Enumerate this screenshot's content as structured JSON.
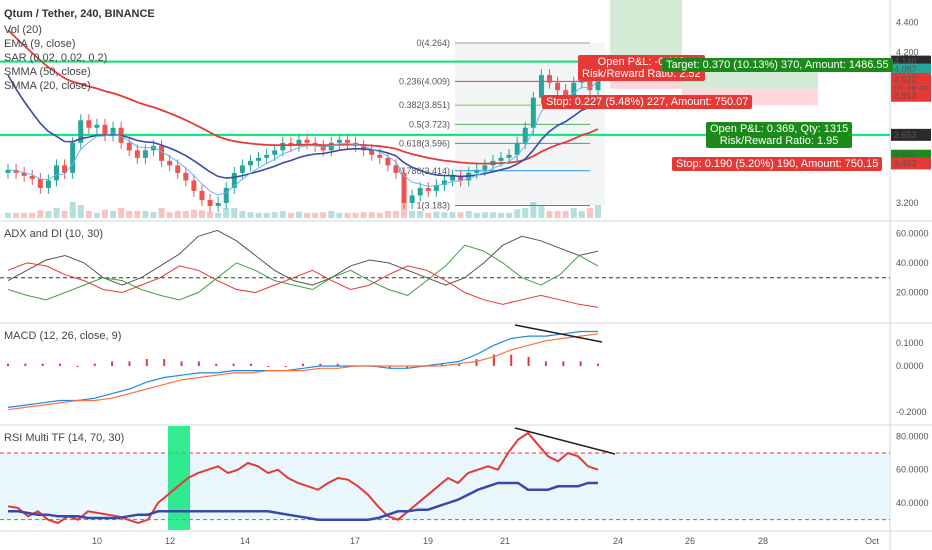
{
  "header": {
    "symbol": "Qtum / Tether, 240, BINANCE",
    "indicators": [
      "Vol (20)",
      "EMA (9, close)",
      "SAR (0.02, 0.02, 0.2)",
      "SMMA (50, close)",
      "SMMA (20, close)"
    ]
  },
  "trade_boxes": {
    "open_pl_1": "Open P&L: -0.118",
    "rr_1": "Risk/Reward Ratio: 2.52",
    "target": "Target: 0.370 (10.13%) 370, Amount: 1486.55",
    "stop_1": "Stop: 0.227 (5.48%) 227, Amount: 750.07",
    "open_pl_2": "Open P&L: 0.369, Qty: 1315",
    "rr_2": "Risk/Reward Ratio: 1.95",
    "stop_2": "Stop: 0.190 (5.20%) 190, Amount: 750.15"
  },
  "fib_levels": [
    {
      "label": "0(4.264)",
      "value": 4.264
    },
    {
      "label": "0.236(4.009)",
      "value": 4.009
    },
    {
      "label": "0.382(3.851)",
      "value": 3.851
    },
    {
      "label": "0.5(3.723)",
      "value": 3.723
    },
    {
      "label": "0.618(3.596)",
      "value": 3.596
    },
    {
      "label": "0.786(3.414)",
      "value": 3.414
    },
    {
      "label": "1(3.183)",
      "value": 3.183
    }
  ],
  "price_tags": [
    {
      "label": "4.140",
      "value": 4.14,
      "color": "#2b2b2b"
    },
    {
      "label": "4.087",
      "value": 4.087,
      "color": "#26a69a"
    },
    {
      "label": "4.023",
      "value": 4.023,
      "color": "#1b8a1b"
    },
    {
      "label": "4.022",
      "value": 4.022,
      "color": "#e53935"
    },
    {
      "label": "01:48:50",
      "value": 3.955,
      "color": "#e53935"
    },
    {
      "label": "3.913",
      "value": 3.913,
      "color": "#e53935"
    },
    {
      "label": "3.653",
      "value": 3.653,
      "color": "#2b2b2b"
    },
    {
      "label": "3.514",
      "value": 3.514,
      "color": "#1b8a1b"
    },
    {
      "label": "3.463",
      "value": 3.463,
      "color": "#e53935"
    }
  ],
  "panes": {
    "adx": {
      "title": "ADX and DI (10, 30)",
      "ticks": [
        "60.0000",
        "40.0000",
        "20.0000"
      ]
    },
    "macd": {
      "title": "MACD (12, 26, close, 9)",
      "ticks": [
        "0.1000",
        "0.0000",
        "-0.2000"
      ]
    },
    "rsi": {
      "title": "RSI Multi TF (14, 70, 30)",
      "ticks": [
        "80.0000",
        "60.0000",
        "40.0000"
      ]
    }
  },
  "price_ticks": [
    "4.400",
    "4.200",
    "3.200"
  ],
  "x_labels": [
    "10",
    "12",
    "14",
    "17",
    "19",
    "21",
    "24",
    "26",
    "28",
    "Oct"
  ],
  "colors": {
    "up": "#26a69a",
    "down": "#ef5350",
    "hline": "#00e676",
    "smma50": "#e53935",
    "smma20": "#3949ab",
    "rsi": "#e53935",
    "rsi_htf": "#3949ab",
    "diplus": "#43a047",
    "diminus": "#e53935",
    "adx": "#555555"
  },
  "chart_data": {
    "type": "candlestick",
    "title": "Qtum / Tether, 240, BINANCE",
    "ylim": [
      3.1,
      4.45
    ],
    "horizontal_lines": [
      4.14,
      3.653
    ],
    "closes": [
      3.42,
      3.4,
      3.38,
      3.36,
      3.3,
      3.35,
      3.45,
      3.4,
      3.6,
      3.75,
      3.7,
      3.72,
      3.65,
      3.7,
      3.6,
      3.55,
      3.5,
      3.55,
      3.58,
      3.48,
      3.45,
      3.4,
      3.35,
      3.28,
      3.22,
      3.18,
      3.2,
      3.3,
      3.4,
      3.45,
      3.48,
      3.5,
      3.52,
      3.55,
      3.6,
      3.58,
      3.62,
      3.6,
      3.58,
      3.55,
      3.6,
      3.62,
      3.6,
      3.58,
      3.55,
      3.52,
      3.5,
      3.45,
      3.4,
      3.2,
      3.25,
      3.3,
      3.28,
      3.32,
      3.35,
      3.38,
      3.35,
      3.4,
      3.42,
      3.45,
      3.48,
      3.5,
      3.52,
      3.6,
      3.7,
      3.9,
      4.05,
      4.0,
      3.95,
      3.9,
      4.0,
      4.05,
      3.95,
      4.1
    ],
    "macd": {
      "macd": [
        -0.18,
        -0.17,
        -0.16,
        -0.15,
        -0.15,
        -0.14,
        -0.12,
        -0.1,
        -0.07,
        -0.05,
        -0.04,
        -0.03,
        -0.03,
        -0.02,
        -0.02,
        -0.02,
        -0.02,
        -0.01,
        0.0,
        0.0,
        0.0,
        0.0,
        -0.01,
        -0.01,
        0.0,
        0.01,
        0.02,
        0.05,
        0.09,
        0.12,
        0.13,
        0.13,
        0.14,
        0.15,
        0.15
      ],
      "signal": [
        -0.19,
        -0.18,
        -0.17,
        -0.16,
        -0.15,
        -0.15,
        -0.14,
        -0.12,
        -0.1,
        -0.08,
        -0.06,
        -0.05,
        -0.04,
        -0.03,
        -0.03,
        -0.02,
        -0.02,
        -0.02,
        -0.01,
        -0.01,
        0.0,
        0.0,
        0.0,
        0.0,
        0.0,
        0.0,
        0.01,
        0.02,
        0.04,
        0.07,
        0.09,
        0.11,
        0.12,
        0.13,
        0.14
      ]
    },
    "rsi": [
      38,
      37,
      32,
      35,
      30,
      28,
      32,
      30,
      35,
      34,
      33,
      32,
      30,
      28,
      30,
      40,
      45,
      50,
      55,
      58,
      60,
      62,
      58,
      60,
      64,
      62,
      58,
      60,
      55,
      52,
      50,
      48,
      52,
      55,
      54,
      50,
      45,
      38,
      32,
      30,
      35,
      40,
      45,
      50,
      55,
      52,
      58,
      60,
      62,
      60,
      70,
      78,
      82,
      75,
      68,
      65,
      70,
      68,
      62,
      60
    ],
    "rsi_htf": [
      35,
      35,
      34,
      33,
      33,
      32,
      32,
      32,
      31,
      31,
      31,
      31,
      32,
      33,
      33,
      35,
      35,
      35,
      35,
      35,
      35,
      35,
      35,
      35,
      35,
      35,
      35,
      34,
      33,
      32,
      31,
      30,
      30,
      30,
      30,
      30,
      30,
      31,
      33,
      35,
      35,
      36,
      36,
      38,
      40,
      42,
      45,
      48,
      50,
      52,
      52,
      52,
      48,
      48,
      48,
      50,
      50,
      50,
      52,
      52
    ]
  }
}
